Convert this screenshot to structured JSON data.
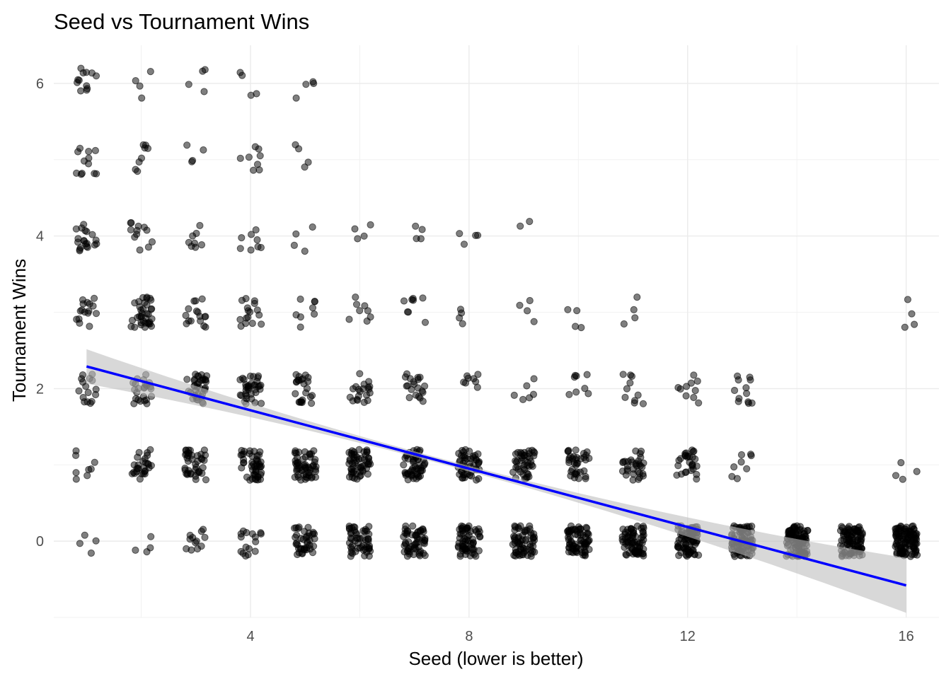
{
  "chart_data": {
    "type": "scatter",
    "title": "Seed vs Tournament Wins",
    "xlabel": "Seed (lower is better)",
    "ylabel": "Tournament Wins",
    "xlim": [
      0.4,
      16.6
    ],
    "ylim": [
      -1.0,
      6.5
    ],
    "x_ticks": [
      4,
      8,
      12,
      16
    ],
    "y_ticks": [
      0,
      2,
      4,
      6
    ],
    "grid": true,
    "legend": "none",
    "point_color": "#000000",
    "point_alpha": 0.5,
    "jitter": {
      "x": 0.2,
      "y": 0.2
    },
    "counts": [
      [
        4,
        8,
        16,
        16,
        20,
        12,
        12
      ],
      [
        4,
        28,
        24,
        36,
        12,
        8,
        4
      ],
      [
        12,
        40,
        36,
        16,
        8,
        4,
        4
      ],
      [
        16,
        48,
        36,
        16,
        8,
        8,
        4
      ],
      [
        40,
        56,
        24,
        8,
        4,
        4,
        4
      ],
      [
        52,
        56,
        20,
        8,
        4,
        0,
        0
      ],
      [
        56,
        52,
        20,
        8,
        4,
        0,
        0
      ],
      [
        64,
        48,
        8,
        4,
        4,
        0,
        0
      ],
      [
        64,
        44,
        6,
        4,
        2,
        0,
        0
      ],
      [
        72,
        36,
        8,
        4,
        0,
        0,
        0
      ],
      [
        76,
        32,
        10,
        4,
        0,
        0,
        0
      ],
      [
        80,
        28,
        10,
        0,
        0,
        0,
        0
      ],
      [
        84,
        8,
        12,
        0,
        0,
        0,
        0
      ],
      [
        96,
        0,
        0,
        0,
        0,
        0,
        0
      ],
      [
        96,
        0,
        0,
        0,
        0,
        0,
        0
      ],
      [
        108,
        4,
        0,
        4,
        0,
        0,
        0
      ]
    ],
    "trend_line": {
      "method": "lm",
      "color": "#0000ff",
      "x_start": 1,
      "y_start": 2.29,
      "x_end": 16,
      "y_end": -0.58,
      "ci_color": "#bebebe"
    }
  }
}
